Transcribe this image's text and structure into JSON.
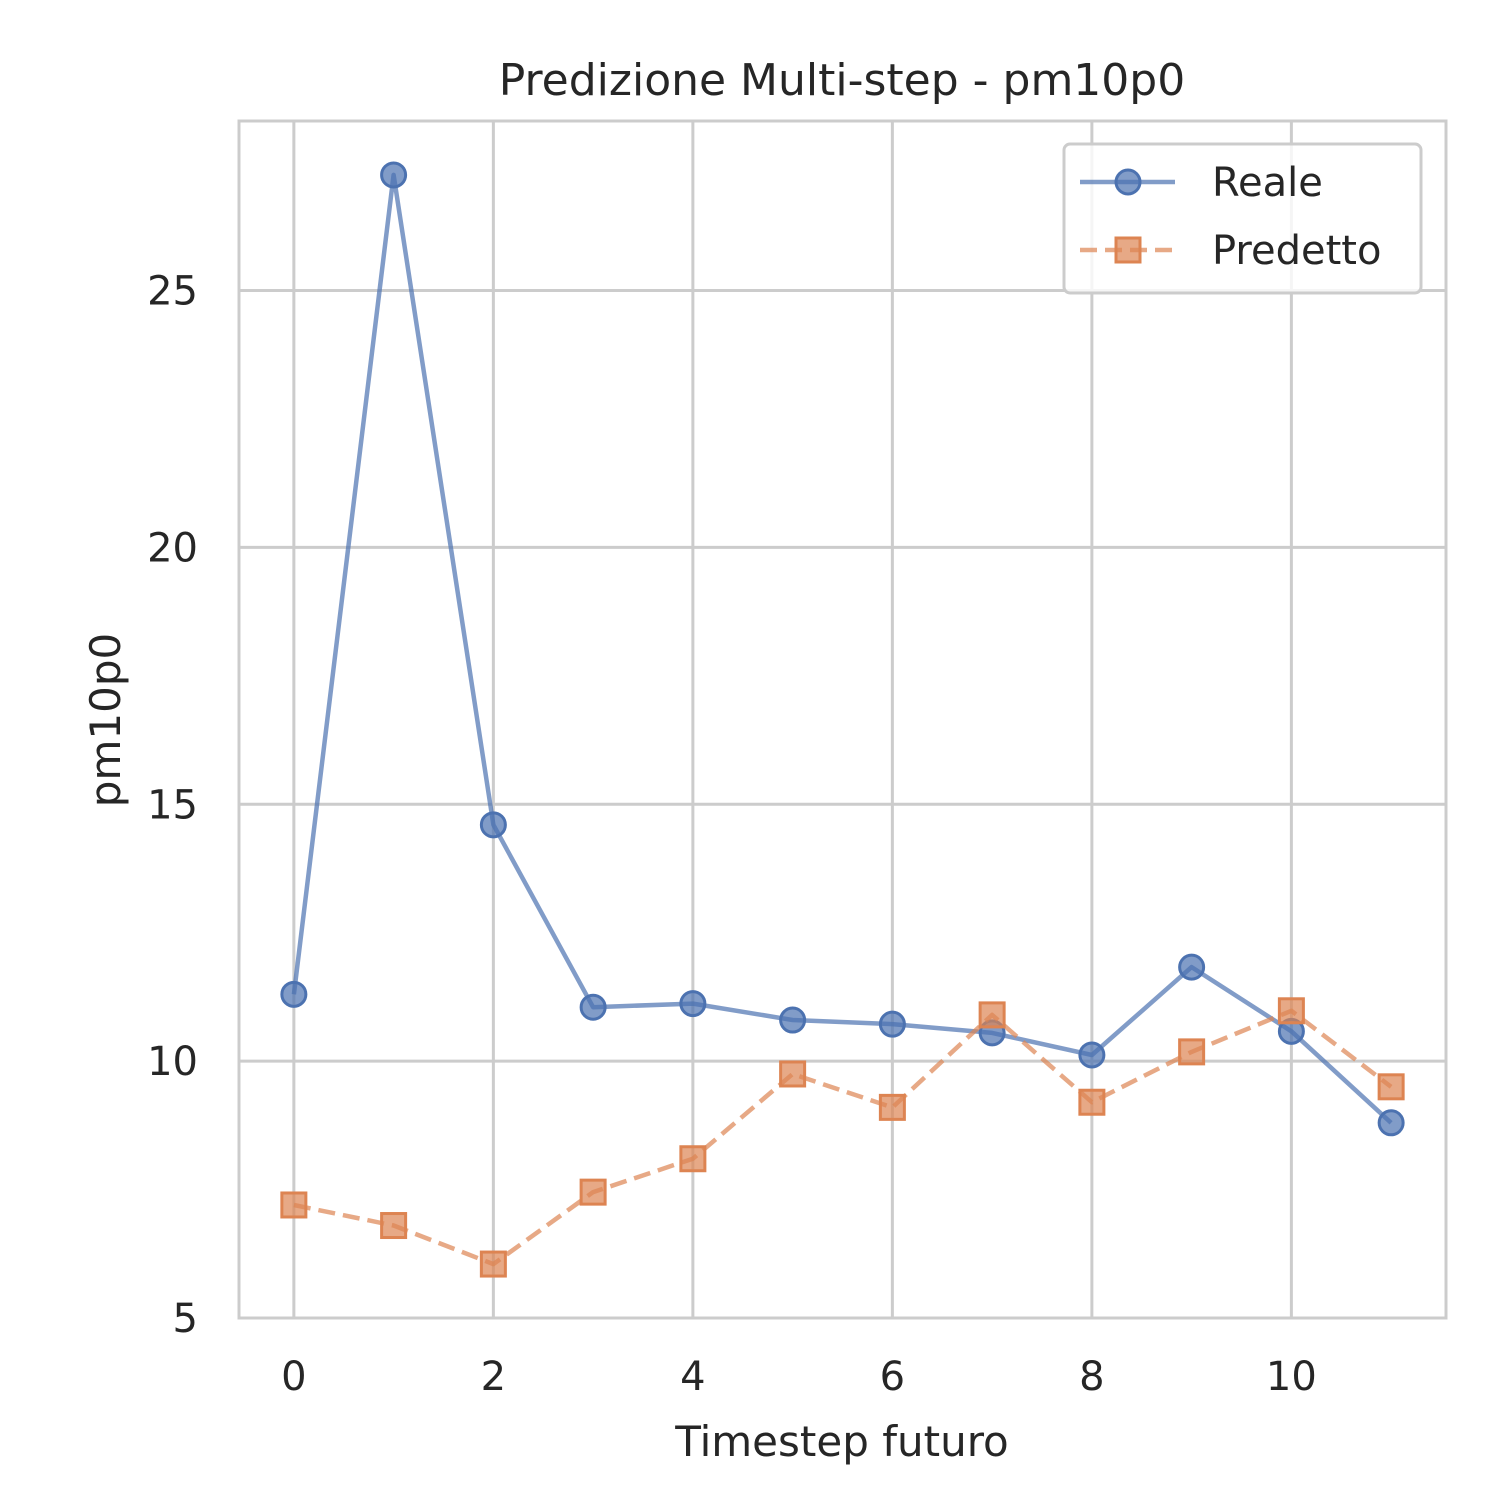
{
  "chart_data": {
    "type": "line",
    "title": "Predizione Multi-step - pm10p0",
    "xlabel": "Timestep futuro",
    "ylabel": "pm10p0",
    "xlim": [
      -0.55,
      11.55
    ],
    "ylim": [
      5,
      28.3
    ],
    "xticks": [
      0,
      2,
      4,
      6,
      8,
      10
    ],
    "yticks": [
      5,
      10,
      15,
      20,
      25
    ],
    "x": [
      0,
      1,
      2,
      3,
      4,
      5,
      6,
      7,
      8,
      9,
      10,
      11
    ],
    "grid": true,
    "legend_position": "top-right",
    "series": [
      {
        "name": "Reale",
        "color": "#4c72b0",
        "marker": "circle",
        "line_style": "solid",
        "values": [
          11.3,
          27.25,
          14.6,
          11.05,
          11.12,
          10.8,
          10.72,
          10.55,
          10.12,
          11.83,
          10.58,
          8.8
        ]
      },
      {
        "name": "Predetto",
        "color": "#dd8452",
        "marker": "square",
        "line_style": "dashed",
        "values": [
          7.2,
          6.8,
          6.05,
          7.45,
          8.1,
          9.75,
          9.1,
          10.9,
          9.2,
          10.18,
          10.98,
          9.5
        ]
      }
    ]
  }
}
